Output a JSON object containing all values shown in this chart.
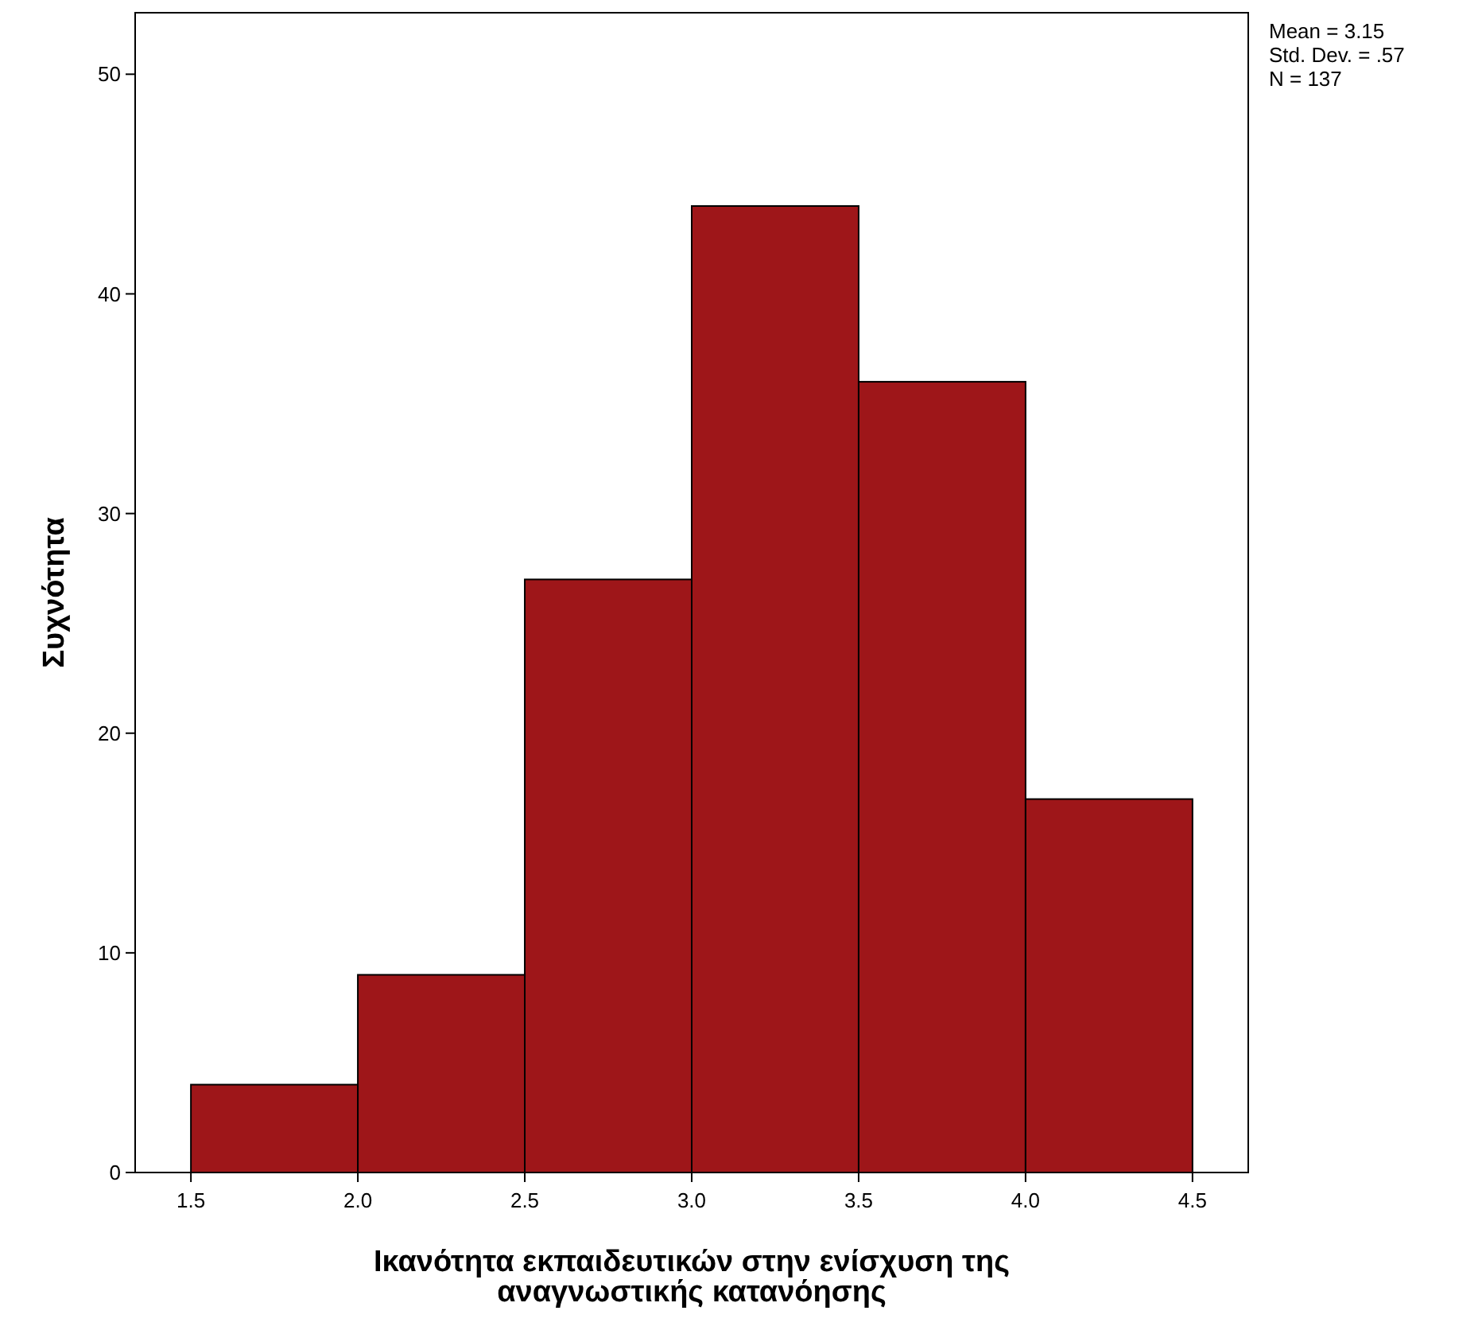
{
  "chart_data": {
    "type": "histogram",
    "xlabel": "Ικανότητα εκπαιδευτικών στην ενίσχυση της αναγνωστικής κατανόησης",
    "ylabel": "Συχνότητα",
    "bins": [
      1.5,
      2.0,
      2.5,
      3.0,
      3.5,
      4.0,
      4.5
    ],
    "values": [
      4,
      9,
      27,
      44,
      36,
      17
    ],
    "color": "#9e1619",
    "xlim": [
      1.333,
      4.667
    ],
    "ylim": [
      0,
      52.8
    ],
    "xticks": [
      {
        "value": 1.5,
        "label": "1.5"
      },
      {
        "value": 2.0,
        "label": "2.0"
      },
      {
        "value": 2.5,
        "label": "2.5"
      },
      {
        "value": 3.0,
        "label": "3.0"
      },
      {
        "value": 3.5,
        "label": "3.5"
      },
      {
        "value": 4.0,
        "label": "4.0"
      },
      {
        "value": 4.5,
        "label": "4.5"
      }
    ],
    "yticks": [
      0,
      10,
      20,
      30,
      40,
      50
    ],
    "annotations": [
      "Mean = 3.15",
      "Std. Dev. = .57",
      "N = 137"
    ],
    "grid": false
  }
}
